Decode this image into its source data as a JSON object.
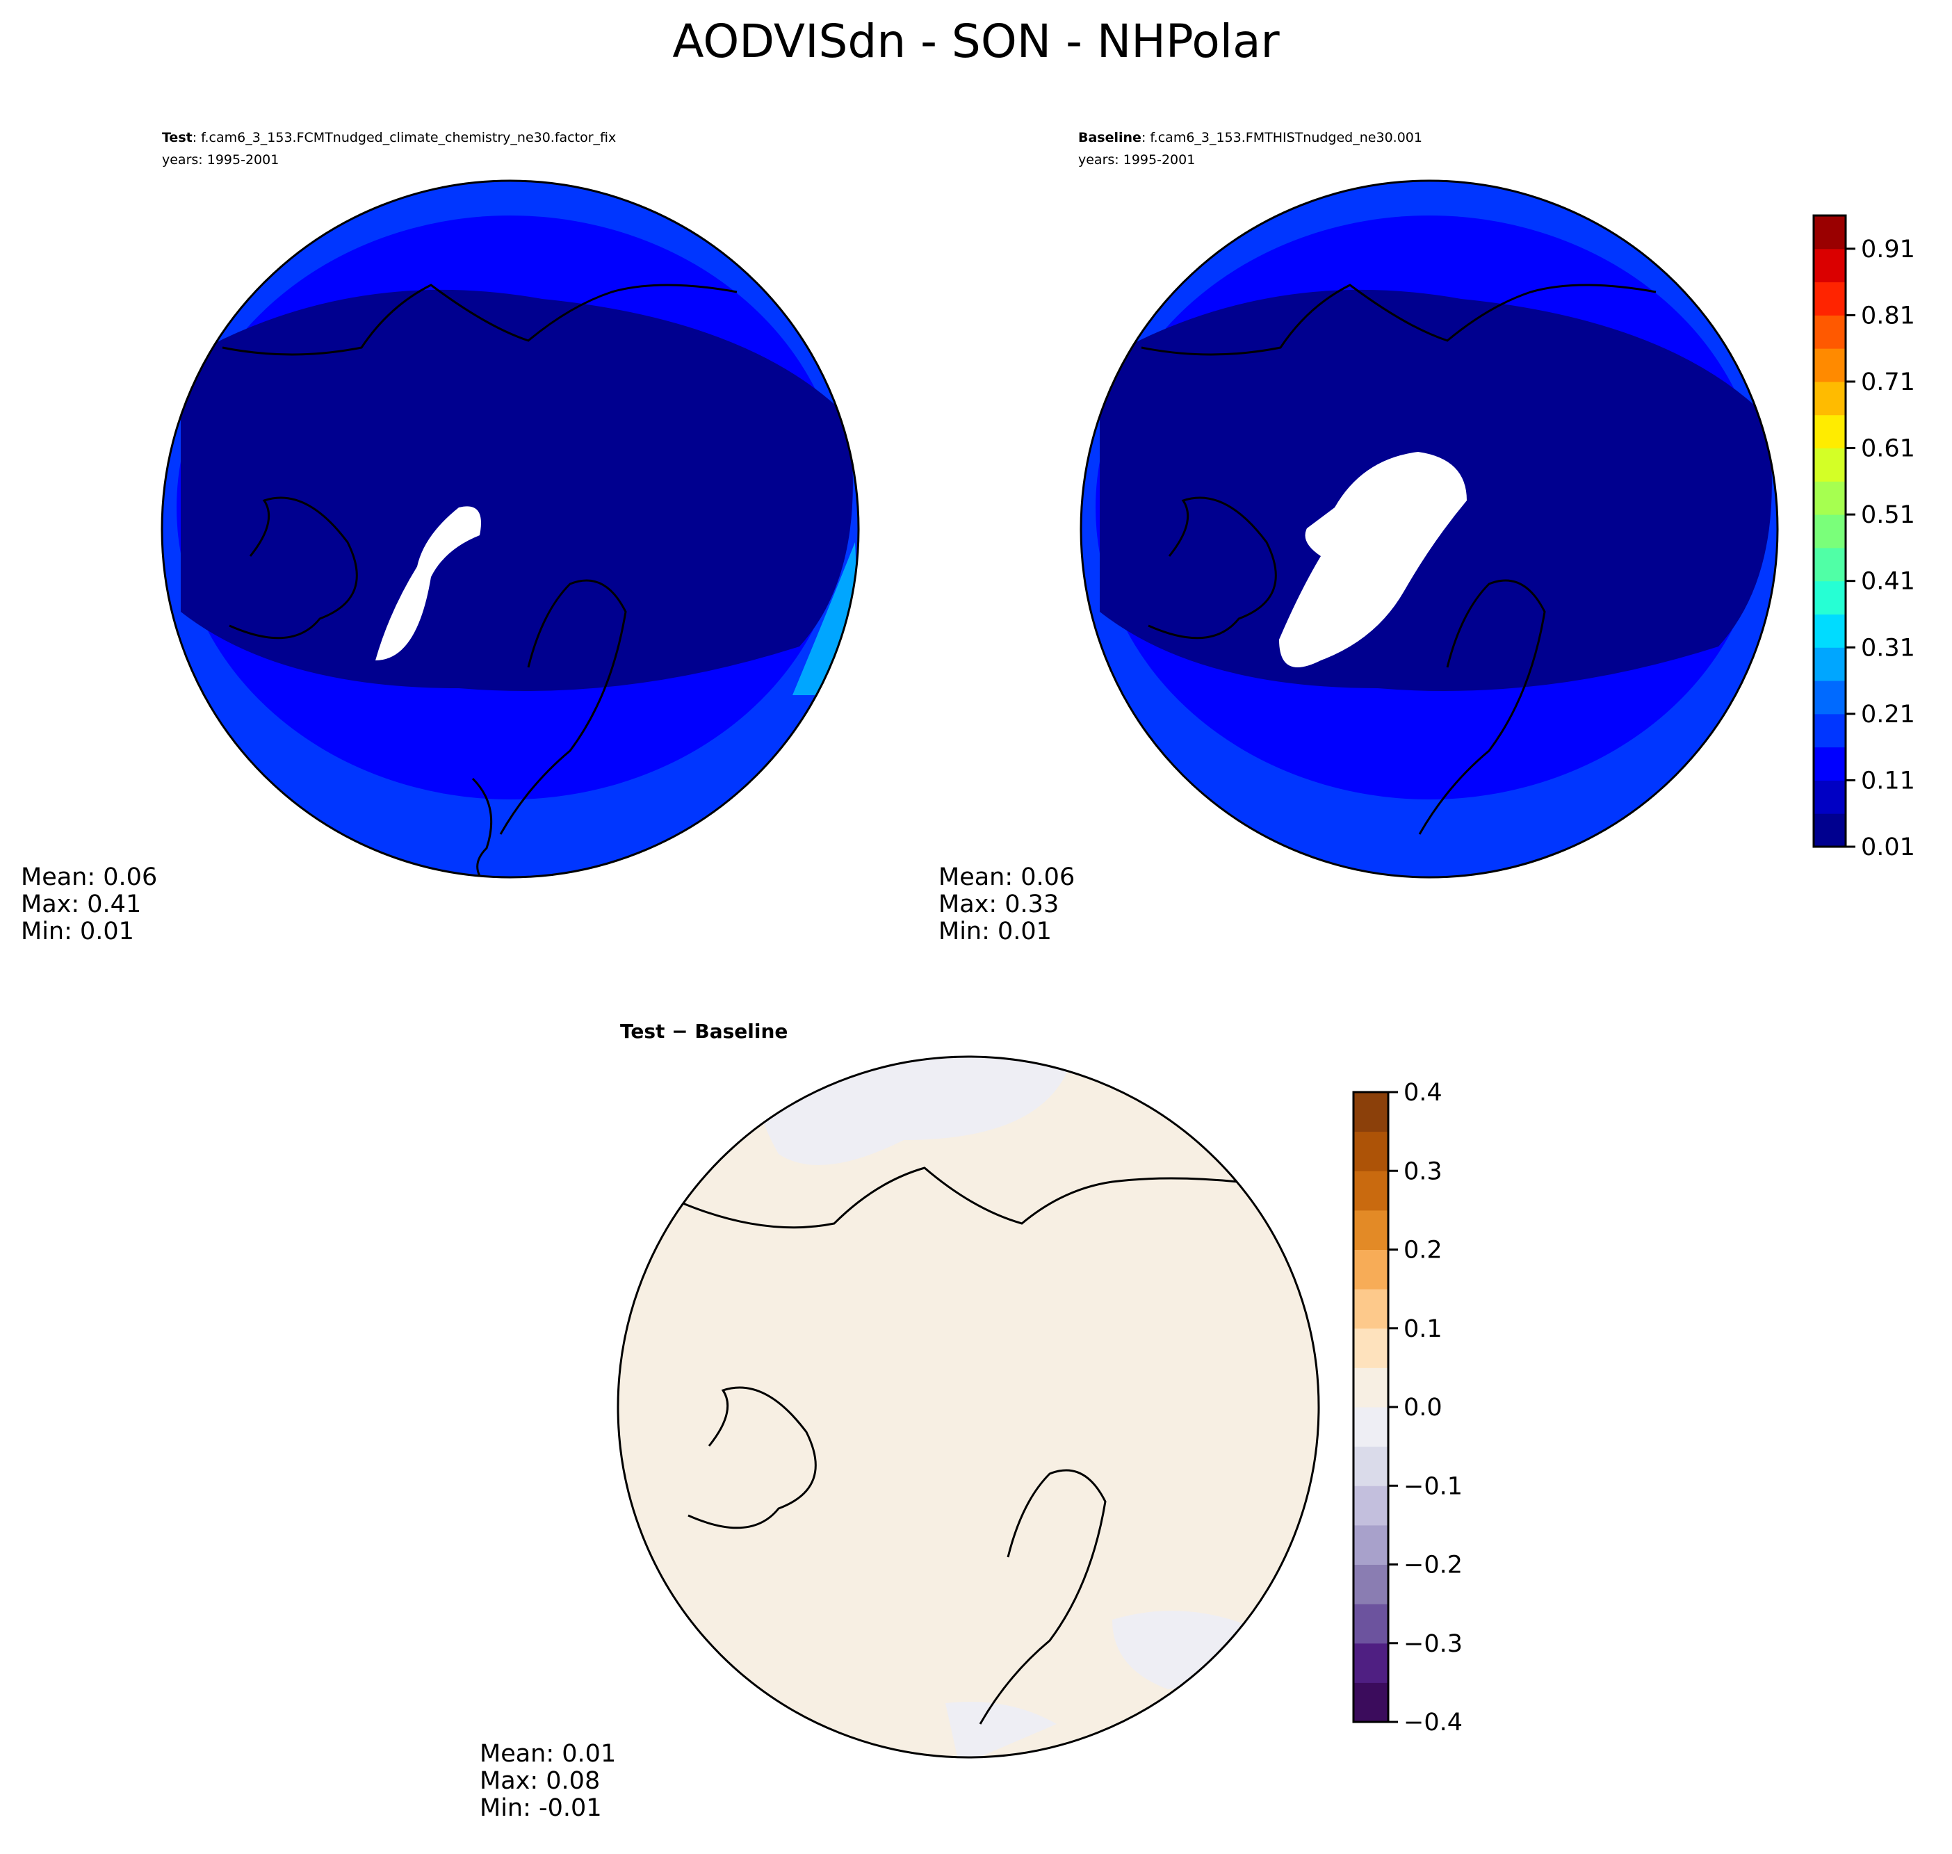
{
  "title": "AODVISdn - SON - NHPolar",
  "panels": [
    {
      "label_bold": "Test",
      "label_rest": ": f.cam6_3_153.FCMTnudged_climate_chemistry_ne30.factor_fix",
      "years": "years: 1995-2001",
      "mean": "Mean:  0.06",
      "max": "Max:  0.41",
      "min": "Min:  0.01"
    },
    {
      "label_bold": "Baseline",
      "label_rest": ": f.cam6_3_153.FMTHISTnudged_ne30.001",
      "years": "years: 1995-2001",
      "mean": "Mean:  0.06",
      "max": "Max:  0.33",
      "min": "Min:  0.01"
    },
    {
      "label_bold": "Test − Baseline",
      "mean": "Mean:  0.01",
      "max": "Max:  0.08",
      "min": "Min: -0.01"
    }
  ],
  "chart_data": [
    {
      "type": "heatmap",
      "projection": "north-polar-stereographic",
      "field": "AODVISdn",
      "season": "SON",
      "colorbar": {
        "levels_min": 0.01,
        "levels_max": 0.96,
        "step": 0.05,
        "ticks": [
          "0.01",
          "0.11",
          "0.21",
          "0.31",
          "0.41",
          "0.51",
          "0.61",
          "0.71",
          "0.81",
          "0.91"
        ],
        "colors": [
          "#00008f",
          "#0000c4",
          "#0000ff",
          "#0036ff",
          "#006aff",
          "#00a6ff",
          "#00dcff",
          "#26ffd4",
          "#50ffa6",
          "#7aff7a",
          "#a6ff50",
          "#d4ff26",
          "#ffec00",
          "#ffbb00",
          "#ff8a00",
          "#ff5900",
          "#ff2400",
          "#da0000",
          "#9a0000"
        ]
      }
    },
    {
      "type": "heatmap",
      "projection": "north-polar-stereographic",
      "field": "difference",
      "colorbar": {
        "levels_min": -0.4,
        "levels_max": 0.4,
        "step": 0.05,
        "ticks": [
          "−0.4",
          "−0.3",
          "−0.2",
          "−0.1",
          "0.0",
          "0.1",
          "0.2",
          "0.3",
          "0.4"
        ],
        "colors": [
          "#3b0c5c",
          "#4f1f82",
          "#6c539e",
          "#8a7db2",
          "#a8a1cb",
          "#c3bfdd",
          "#dadbea",
          "#eeeef4",
          "#f7efe3",
          "#fee2bd",
          "#fdc98b",
          "#f7ac57",
          "#e38a26",
          "#c96a0f",
          "#ad5307",
          "#8b400a"
        ]
      }
    }
  ]
}
